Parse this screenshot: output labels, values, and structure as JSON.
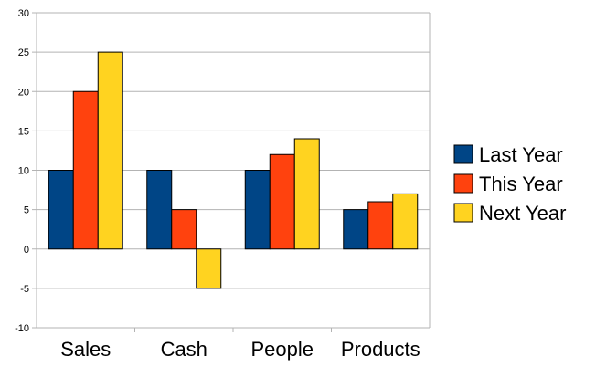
{
  "chart_data": {
    "type": "bar",
    "categories": [
      "Sales",
      "Cash",
      "People",
      "Products"
    ],
    "series": [
      {
        "name": "Last Year",
        "values": [
          10,
          10,
          10,
          5
        ],
        "color": "#004586"
      },
      {
        "name": "This Year",
        "values": [
          20,
          5,
          12,
          6
        ],
        "color": "#ff420e"
      },
      {
        "name": "Next Year",
        "values": [
          25,
          -5,
          14,
          7
        ],
        "color": "#ffd320"
      }
    ],
    "ylim": [
      -10,
      30
    ],
    "yticks": [
      -10,
      -5,
      0,
      5,
      10,
      15,
      20,
      25,
      30
    ],
    "grid": true,
    "legend": "right"
  }
}
